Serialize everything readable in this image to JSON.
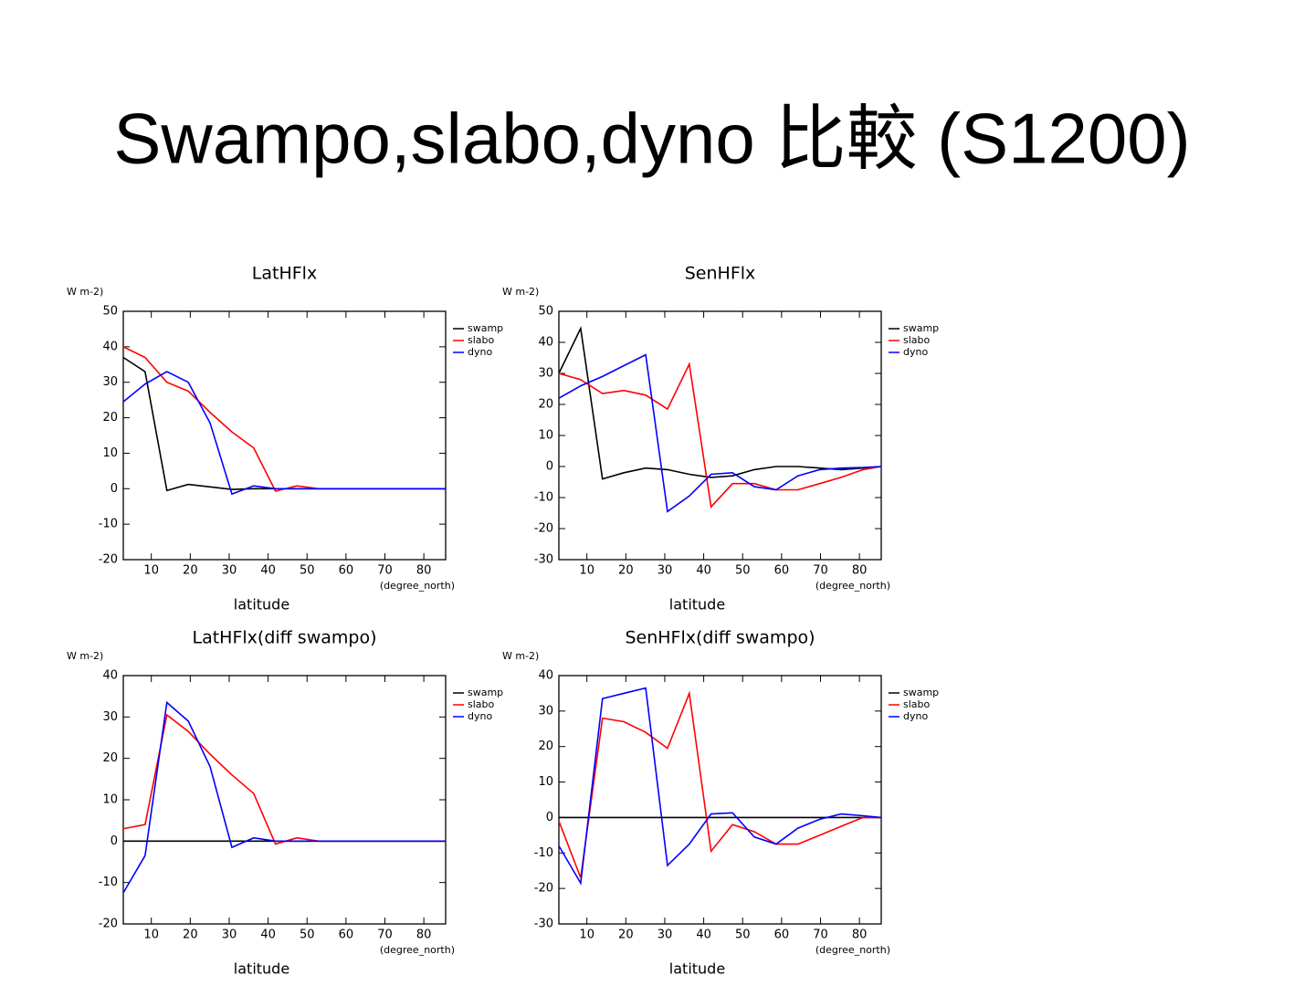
{
  "title": "Swampo,slabo,dyno 比較 (S1200)",
  "chart_data": [
    {
      "type": "line",
      "title": "LatHFlx",
      "y_label": "W m-2)",
      "x_label": "latitude",
      "x_unit": "(degree_north)",
      "x": [
        2.8,
        8.4,
        14.0,
        19.5,
        25.1,
        30.7,
        36.3,
        41.9,
        47.4,
        53.0,
        58.6,
        64.2,
        69.8,
        75.3,
        80.9,
        85.6
      ],
      "xlim": [
        2.8,
        85.6
      ],
      "xticks": [
        10,
        20,
        30,
        40,
        50,
        60,
        70,
        80
      ],
      "ylim": [
        -20,
        50
      ],
      "yticks": [
        -20,
        -10,
        0,
        10,
        20,
        30,
        40,
        50
      ],
      "series": [
        {
          "name": "swamp",
          "color": "#000000",
          "values": [
            37,
            33,
            -0.5,
            1.2,
            0.5,
            -0.2,
            0,
            0,
            0,
            0,
            0,
            0,
            0,
            0,
            0,
            0
          ]
        },
        {
          "name": "slabo",
          "color": "#ff0000",
          "values": [
            40,
            37,
            30,
            27.5,
            21.5,
            16,
            11.5,
            -0.7,
            0.8,
            0,
            0,
            0,
            0,
            0,
            0,
            0
          ]
        },
        {
          "name": "dyno",
          "color": "#0000ff",
          "values": [
            24.5,
            29.5,
            33,
            30,
            18.5,
            -1.5,
            0.8,
            0,
            0,
            0,
            0,
            0,
            0,
            0,
            0,
            0
          ]
        }
      ]
    },
    {
      "type": "line",
      "title": "SenHFlx",
      "y_label": "W m-2)",
      "x_label": "latitude",
      "x_unit": "(degree_north)",
      "x": [
        2.8,
        8.4,
        14.0,
        19.5,
        25.1,
        30.7,
        36.3,
        41.9,
        47.4,
        53.0,
        58.6,
        64.2,
        69.8,
        75.3,
        80.9,
        85.6
      ],
      "xlim": [
        2.8,
        85.6
      ],
      "xticks": [
        10,
        20,
        30,
        40,
        50,
        60,
        70,
        80
      ],
      "ylim": [
        -30,
        50
      ],
      "yticks": [
        -30,
        -20,
        -10,
        0,
        10,
        20,
        30,
        40,
        50
      ],
      "series": [
        {
          "name": "swamp",
          "color": "#000000",
          "values": [
            30,
            44.5,
            -4,
            -2,
            -0.5,
            -1,
            -2.5,
            -3.5,
            -3,
            -1,
            0,
            0,
            -0.5,
            -1,
            -0.5,
            0
          ]
        },
        {
          "name": "slabo",
          "color": "#ff0000",
          "values": [
            30,
            28,
            23.5,
            24.5,
            23,
            18.5,
            33,
            -13,
            -5.5,
            -5.5,
            -7.5,
            -7.5,
            -5.5,
            -3.5,
            -1,
            0
          ]
        },
        {
          "name": "dyno",
          "color": "#0000ff",
          "values": [
            22,
            26,
            29,
            32.5,
            36,
            -14.5,
            -9.5,
            -2.5,
            -2,
            -6.5,
            -7.5,
            -3,
            -1,
            -0.5,
            -0.3,
            0
          ]
        }
      ]
    },
    {
      "type": "line",
      "title": "LatHFlx(diff swampo)",
      "y_label": "W m-2)",
      "x_label": "latitude",
      "x_unit": "(degree_north)",
      "x": [
        2.8,
        8.4,
        14.0,
        19.5,
        25.1,
        30.7,
        36.3,
        41.9,
        47.4,
        53.0,
        58.6,
        64.2,
        69.8,
        75.3,
        80.9,
        85.6
      ],
      "xlim": [
        2.8,
        85.6
      ],
      "xticks": [
        10,
        20,
        30,
        40,
        50,
        60,
        70,
        80
      ],
      "ylim": [
        -20,
        40
      ],
      "yticks": [
        -20,
        -10,
        0,
        10,
        20,
        30,
        40
      ],
      "series": [
        {
          "name": "swamp",
          "color": "#000000",
          "values": [
            0,
            0,
            0,
            0,
            0,
            0,
            0,
            0,
            0,
            0,
            0,
            0,
            0,
            0,
            0,
            0
          ]
        },
        {
          "name": "slabo",
          "color": "#ff0000",
          "values": [
            3,
            4,
            30.5,
            26.5,
            21,
            16,
            11.5,
            -0.7,
            0.8,
            0,
            0,
            0,
            0,
            0,
            0,
            0
          ]
        },
        {
          "name": "dyno",
          "color": "#0000ff",
          "values": [
            -12.5,
            -3.5,
            33.5,
            29,
            18,
            -1.5,
            0.8,
            0,
            0,
            0,
            0,
            0,
            0,
            0,
            0,
            0
          ]
        }
      ]
    },
    {
      "type": "line",
      "title": "SenHFlx(diff swampo)",
      "y_label": "W m-2)",
      "x_label": "latitude",
      "x_unit": "(degree_north)",
      "x": [
        2.8,
        8.4,
        14.0,
        19.5,
        25.1,
        30.7,
        36.3,
        41.9,
        47.4,
        53.0,
        58.6,
        64.2,
        69.8,
        75.3,
        80.9,
        85.6
      ],
      "xlim": [
        2.8,
        85.6
      ],
      "xticks": [
        10,
        20,
        30,
        40,
        50,
        60,
        70,
        80
      ],
      "ylim": [
        -30,
        40
      ],
      "yticks": [
        -30,
        -20,
        -10,
        0,
        10,
        20,
        30,
        40
      ],
      "series": [
        {
          "name": "swamp",
          "color": "#000000",
          "values": [
            0,
            0,
            0,
            0,
            0,
            0,
            0,
            0,
            0,
            0,
            0,
            0,
            0,
            0,
            0,
            0
          ]
        },
        {
          "name": "slabo",
          "color": "#ff0000",
          "values": [
            -1,
            -17,
            28,
            27,
            24,
            19.5,
            35,
            -9.5,
            -2,
            -4,
            -7.5,
            -7.5,
            -5,
            -2.5,
            0,
            0
          ]
        },
        {
          "name": "dyno",
          "color": "#0000ff",
          "values": [
            -8,
            -18.5,
            33.5,
            35,
            36.5,
            -13.5,
            -7.5,
            1,
            1.3,
            -5.5,
            -7.5,
            -3,
            -0.5,
            1,
            0.5,
            0
          ]
        }
      ]
    }
  ]
}
